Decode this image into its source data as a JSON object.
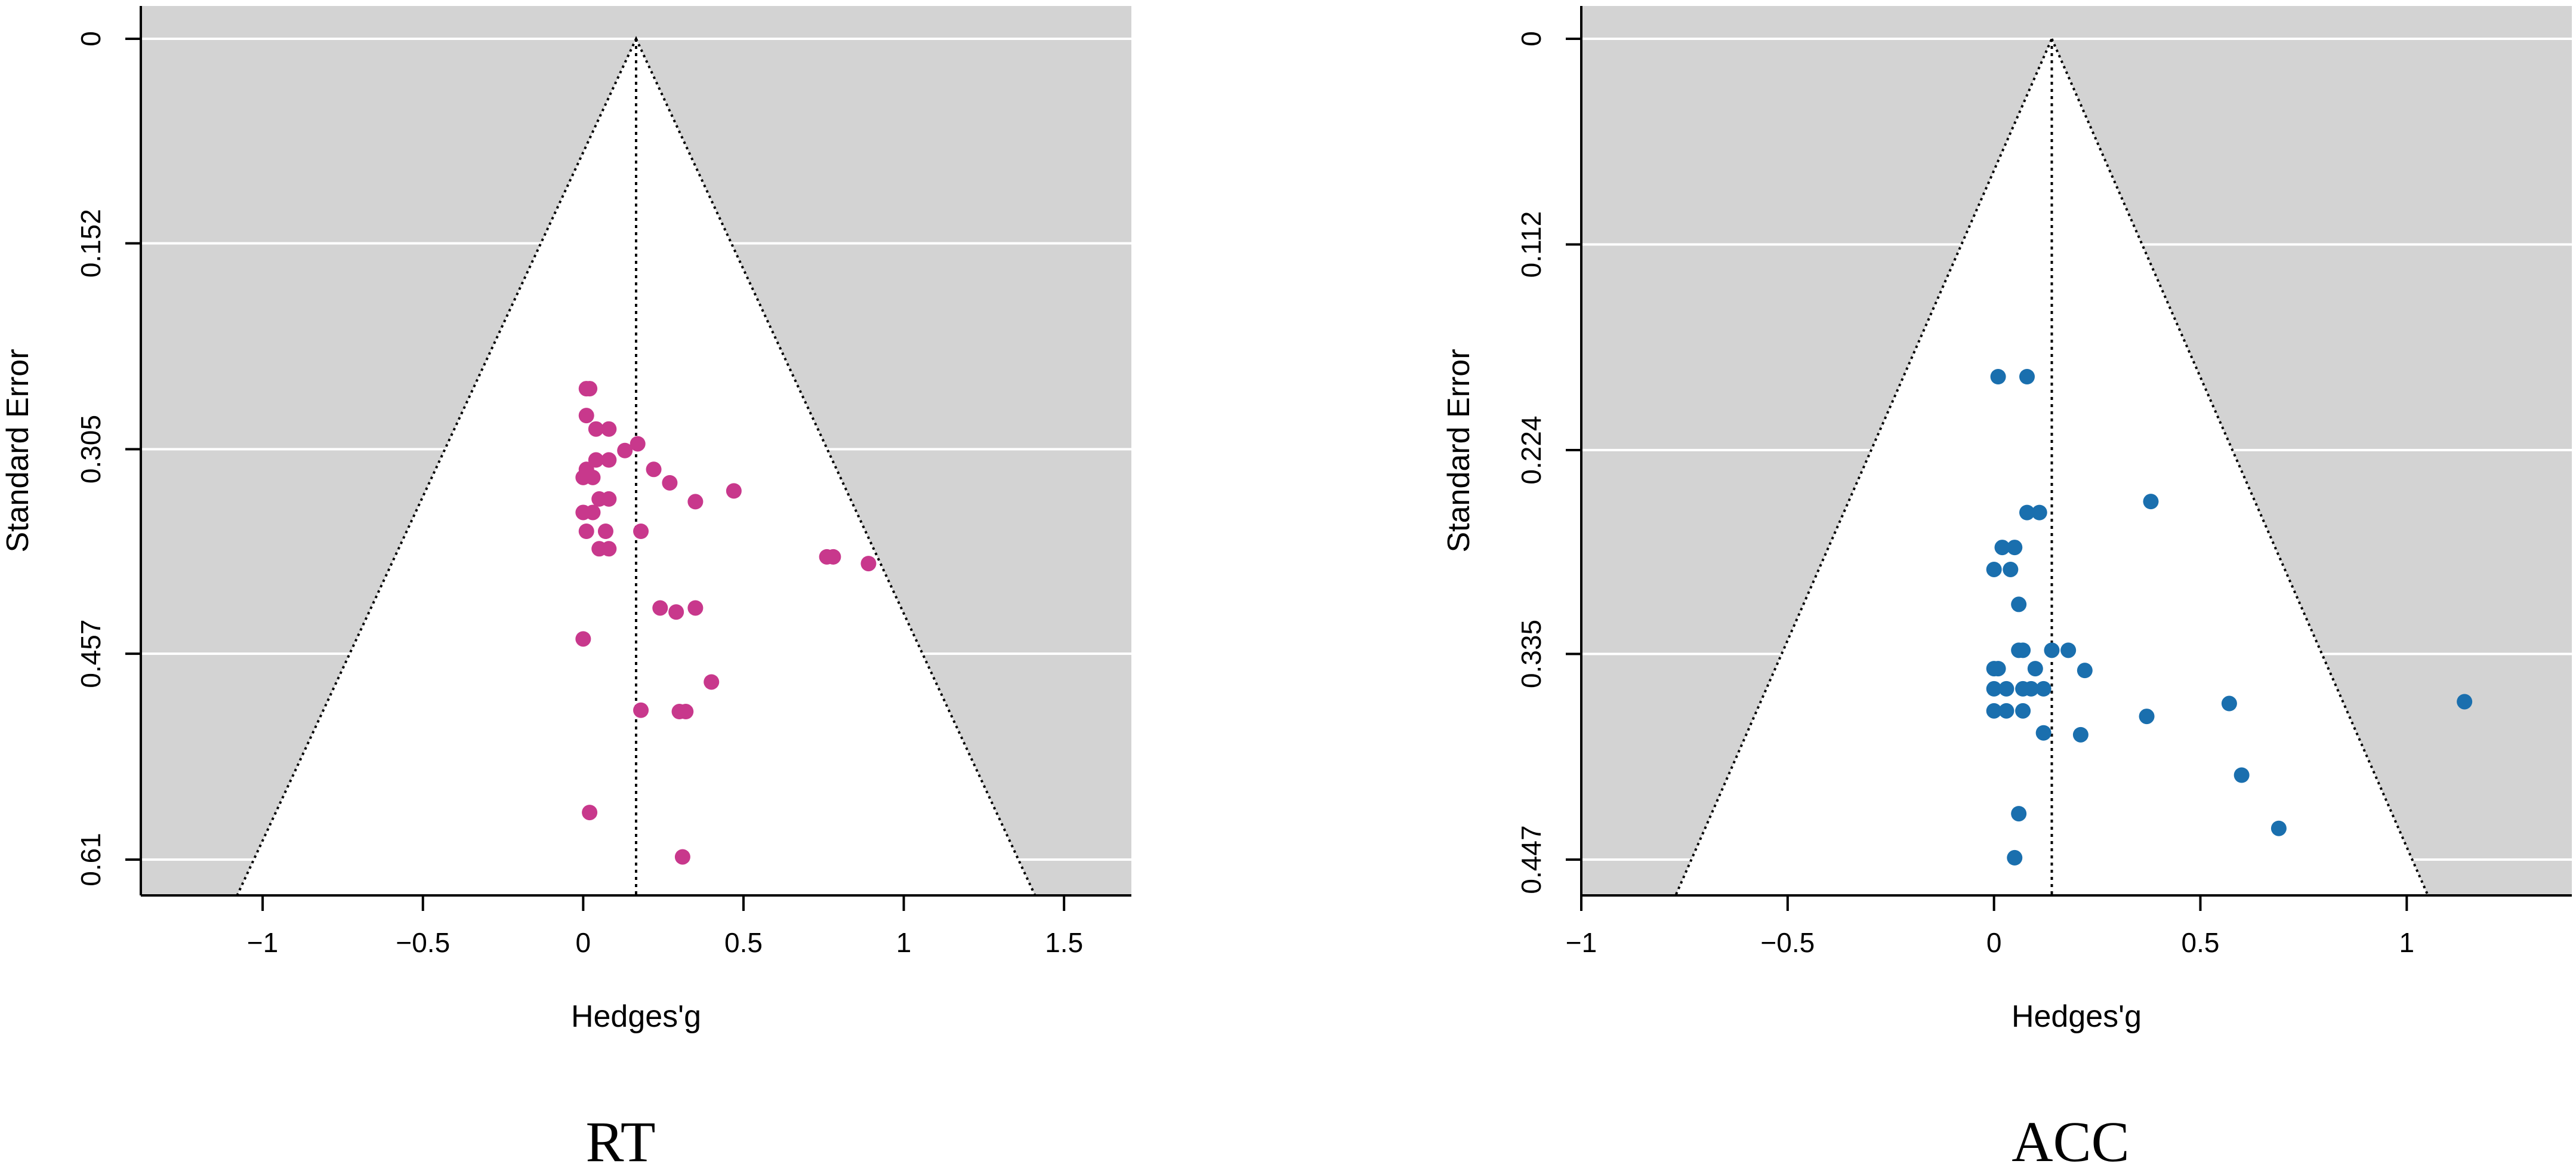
{
  "chart_data": [
    {
      "type": "scatter",
      "subtype": "funnel",
      "panel_label": "RT",
      "xlabel": "Hedges'g",
      "ylabel": "Standard Error",
      "xlim": [
        -1.38,
        1.71
      ],
      "ylim": [
        0,
        0.635
      ],
      "y_reversed": true,
      "xticks": [
        -1,
        -0.5,
        0,
        0.5,
        1,
        1.5
      ],
      "xtick_labels": [
        "−1",
        "−0.5",
        "0",
        "0.5",
        "1",
        "1.5"
      ],
      "yticks": [
        0,
        0.152,
        0.305,
        0.457,
        0.61
      ],
      "ytick_labels": [
        "0",
        "0.152",
        "0.305",
        "0.457",
        "0.61"
      ],
      "pooled_effect": 0.165,
      "funnel": "pseudo 95% confidence region (white) on grey background",
      "point_color": "#c8388c",
      "points": [
        {
          "x": 0.01,
          "y": 0.26
        },
        {
          "x": 0.02,
          "y": 0.26
        },
        {
          "x": 0.01,
          "y": 0.28
        },
        {
          "x": 0.04,
          "y": 0.29
        },
        {
          "x": 0.08,
          "y": 0.29
        },
        {
          "x": 0.17,
          "y": 0.301
        },
        {
          "x": 0.13,
          "y": 0.306
        },
        {
          "x": 0.04,
          "y": 0.313
        },
        {
          "x": 0.08,
          "y": 0.313
        },
        {
          "x": 0.01,
          "y": 0.32
        },
        {
          "x": 0.22,
          "y": 0.32
        },
        {
          "x": 0.0,
          "y": 0.326
        },
        {
          "x": 0.03,
          "y": 0.326
        },
        {
          "x": 0.27,
          "y": 0.33
        },
        {
          "x": 0.47,
          "y": 0.336
        },
        {
          "x": 0.05,
          "y": 0.342
        },
        {
          "x": 0.08,
          "y": 0.342
        },
        {
          "x": 0.35,
          "y": 0.344
        },
        {
          "x": 0.0,
          "y": 0.352
        },
        {
          "x": 0.03,
          "y": 0.352
        },
        {
          "x": 0.01,
          "y": 0.366
        },
        {
          "x": 0.07,
          "y": 0.366
        },
        {
          "x": 0.18,
          "y": 0.366
        },
        {
          "x": 0.05,
          "y": 0.379
        },
        {
          "x": 0.08,
          "y": 0.379
        },
        {
          "x": 0.76,
          "y": 0.385
        },
        {
          "x": 0.78,
          "y": 0.385
        },
        {
          "x": 0.89,
          "y": 0.39
        },
        {
          "x": 0.24,
          "y": 0.423
        },
        {
          "x": 0.35,
          "y": 0.423
        },
        {
          "x": 0.29,
          "y": 0.426
        },
        {
          "x": 0.0,
          "y": 0.446
        },
        {
          "x": 0.4,
          "y": 0.478
        },
        {
          "x": 0.18,
          "y": 0.499
        },
        {
          "x": 0.3,
          "y": 0.5
        },
        {
          "x": 0.32,
          "y": 0.5
        },
        {
          "x": 0.02,
          "y": 0.575
        },
        {
          "x": 0.31,
          "y": 0.608
        }
      ]
    },
    {
      "type": "scatter",
      "subtype": "funnel",
      "panel_label": "ACC",
      "xlabel": "Hedges'g",
      "ylabel": "Standard Error",
      "xlim": [
        -1.0,
        1.4
      ],
      "ylim": [
        0,
        0.465
      ],
      "y_reversed": true,
      "xticks": [
        -1,
        -0.5,
        0,
        0.5,
        1
      ],
      "xtick_labels": [
        "−1",
        "−0.5",
        "0",
        "0.5",
        "1"
      ],
      "yticks": [
        0,
        0.112,
        0.224,
        0.335,
        0.447
      ],
      "ytick_labels": [
        "0",
        "0.112",
        "0.224",
        "0.335",
        "0.447"
      ],
      "pooled_effect": 0.14,
      "funnel": "pseudo 95% confidence region (white) on grey background",
      "point_color": "#1a6fae",
      "points": [
        {
          "x": 0.01,
          "y": 0.184
        },
        {
          "x": 0.08,
          "y": 0.184
        },
        {
          "x": 0.38,
          "y": 0.252
        },
        {
          "x": 0.08,
          "y": 0.258
        },
        {
          "x": 0.11,
          "y": 0.258
        },
        {
          "x": 0.02,
          "y": 0.277
        },
        {
          "x": 0.05,
          "y": 0.277
        },
        {
          "x": 0.0,
          "y": 0.289
        },
        {
          "x": 0.04,
          "y": 0.289
        },
        {
          "x": 0.06,
          "y": 0.308
        },
        {
          "x": 0.06,
          "y": 0.333
        },
        {
          "x": 0.07,
          "y": 0.333
        },
        {
          "x": 0.14,
          "y": 0.333
        },
        {
          "x": 0.18,
          "y": 0.333
        },
        {
          "x": 0.0,
          "y": 0.343
        },
        {
          "x": 0.01,
          "y": 0.343
        },
        {
          "x": 0.1,
          "y": 0.343
        },
        {
          "x": 0.22,
          "y": 0.344
        },
        {
          "x": 0.0,
          "y": 0.354
        },
        {
          "x": 0.03,
          "y": 0.354
        },
        {
          "x": 0.07,
          "y": 0.354
        },
        {
          "x": 0.09,
          "y": 0.354
        },
        {
          "x": 0.12,
          "y": 0.354
        },
        {
          "x": 0.0,
          "y": 0.366
        },
        {
          "x": 0.03,
          "y": 0.366
        },
        {
          "x": 0.07,
          "y": 0.366
        },
        {
          "x": 0.57,
          "y": 0.362
        },
        {
          "x": 1.14,
          "y": 0.361
        },
        {
          "x": 0.37,
          "y": 0.369
        },
        {
          "x": 0.12,
          "y": 0.378
        },
        {
          "x": 0.21,
          "y": 0.379
        },
        {
          "x": 0.6,
          "y": 0.401
        },
        {
          "x": 0.06,
          "y": 0.422
        },
        {
          "x": 0.69,
          "y": 0.43
        },
        {
          "x": 0.05,
          "y": 0.446
        }
      ]
    }
  ]
}
